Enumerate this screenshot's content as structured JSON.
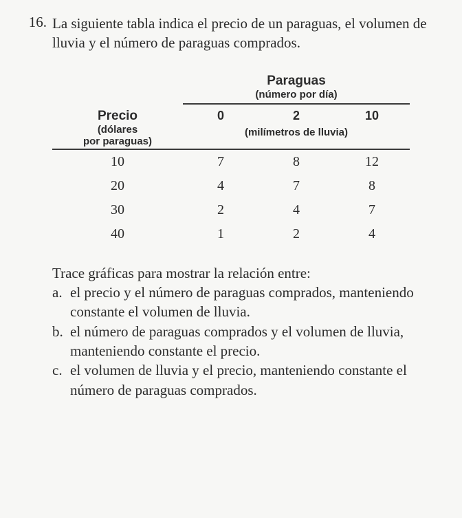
{
  "question_number": "16.",
  "question_text": "La siguiente tabla indica el precio de un paraguas, el volumen de lluvia y el número de paraguas comprados.",
  "table": {
    "header_right_title": "Paraguas",
    "header_right_sub": "(número por día)",
    "header_left_title": "Precio",
    "header_left_sub1": "(dólares",
    "header_left_sub2": "por paraguas)",
    "col_headers": [
      "0",
      "2",
      "10"
    ],
    "col_sub": "(milímetros de lluvia)",
    "rows": [
      {
        "price": "10",
        "vals": [
          "7",
          "8",
          "12"
        ]
      },
      {
        "price": "20",
        "vals": [
          "4",
          "7",
          "8"
        ]
      },
      {
        "price": "30",
        "vals": [
          "2",
          "4",
          "7"
        ]
      },
      {
        "price": "40",
        "vals": [
          "1",
          "2",
          "4"
        ]
      }
    ],
    "border_color": "#3a3a3a",
    "text_color": "#2c2c2c",
    "bg_color": "#f7f7f5"
  },
  "instruction": "Trace gráficas para mostrar la relación entre:",
  "items": [
    {
      "letter": "a.",
      "text": "el precio y el número de paraguas comprados, manteniendo constante el volumen de lluvia."
    },
    {
      "letter": "b.",
      "text": "el número de paraguas comprados y el volumen de lluvia, manteniendo constante el precio."
    },
    {
      "letter": "c.",
      "text": "el volumen de lluvia y el precio, manteniendo constante el número de paraguas comprados."
    }
  ]
}
